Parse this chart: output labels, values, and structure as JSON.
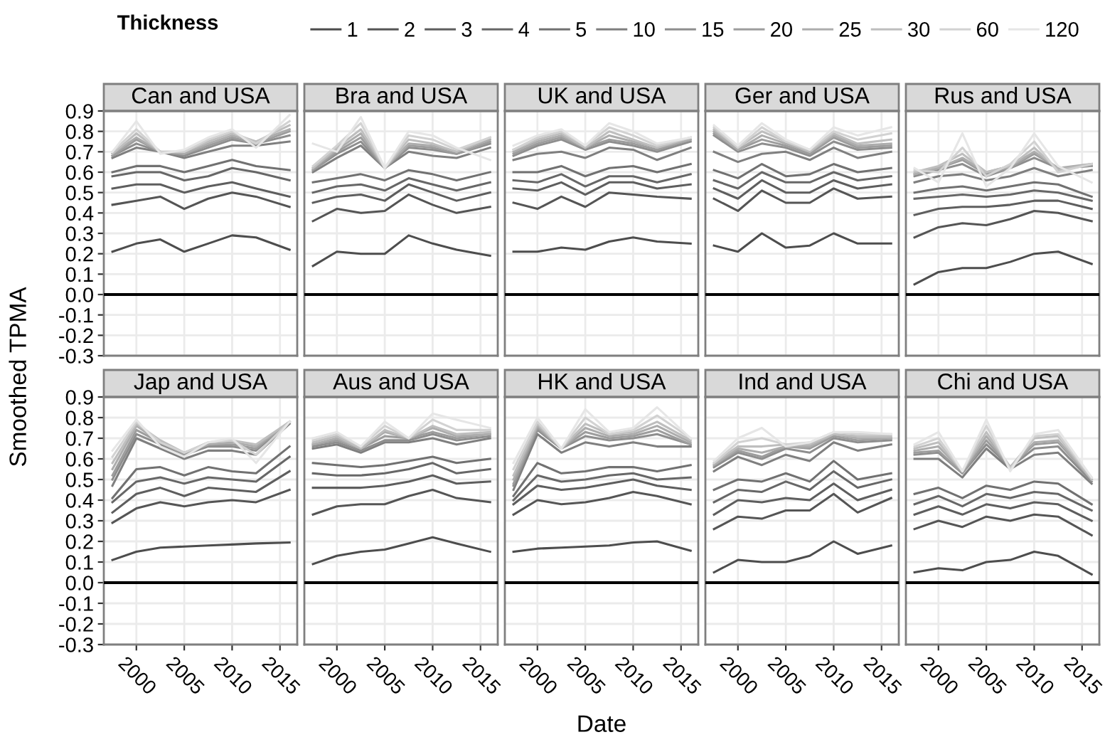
{
  "chart_data": [
    {
      "type": "line",
      "title": "Can and USA",
      "ylabel": "Smoothed TPMA",
      "legend_title": "Thickness",
      "legend": "top",
      "grid": true,
      "tick_labels": "y",
      "x": [
        1997.5,
        2000,
        2002.5,
        2005,
        2007.5,
        2010,
        2012.5,
        2016
      ],
      "xlim": [
        1996.6,
        2016.8
      ],
      "xticks": [
        2000,
        2005,
        2010,
        2015
      ],
      "ylim": [
        -0.3,
        0.9
      ],
      "yticks": [
        -0.3,
        -0.2,
        -0.1,
        {
          "value": 0,
          "label": "0.0"
        },
        0.1,
        0.2,
        0.3,
        0.4,
        0.5,
        0.6,
        0.7,
        0.8,
        0.9
      ],
      "ref_lines": [
        {
          "axis": "y",
          "value": 0,
          "color": "#000000"
        }
      ],
      "series": [
        {
          "name": "1",
          "color": "#4d4d4d",
          "values": [
            0.21,
            0.25,
            0.27,
            0.21,
            0.25,
            0.29,
            0.28,
            0.22
          ]
        },
        {
          "name": "2",
          "color": "#555555",
          "values": [
            0.44,
            0.46,
            0.48,
            0.42,
            0.47,
            0.5,
            0.48,
            0.43
          ]
        },
        {
          "name": "3",
          "color": "#5e5e5e",
          "values": [
            0.52,
            0.54,
            0.54,
            0.5,
            0.53,
            0.55,
            0.52,
            0.48
          ]
        },
        {
          "name": "4",
          "color": "#676767",
          "values": [
            0.58,
            0.6,
            0.6,
            0.56,
            0.58,
            0.62,
            0.6,
            0.56
          ]
        },
        {
          "name": "5",
          "color": "#717171",
          "values": [
            0.6,
            0.63,
            0.63,
            0.6,
            0.63,
            0.66,
            0.63,
            0.61
          ]
        },
        {
          "name": "10",
          "color": "#7f7f7f",
          "values": [
            0.67,
            0.72,
            0.7,
            0.67,
            0.7,
            0.73,
            0.73,
            0.75
          ]
        },
        {
          "name": "15",
          "color": "#8e8e8e",
          "values": [
            0.68,
            0.74,
            0.7,
            0.68,
            0.72,
            0.76,
            0.74,
            0.78
          ]
        },
        {
          "name": "20",
          "color": "#9d9d9d",
          "values": [
            0.68,
            0.76,
            0.7,
            0.69,
            0.73,
            0.77,
            0.74,
            0.8
          ]
        },
        {
          "name": "25",
          "color": "#adadad",
          "values": [
            0.69,
            0.77,
            0.7,
            0.69,
            0.74,
            0.78,
            0.75,
            0.81
          ]
        },
        {
          "name": "30",
          "color": "#bebebe",
          "values": [
            0.69,
            0.79,
            0.7,
            0.7,
            0.75,
            0.79,
            0.75,
            0.83
          ]
        },
        {
          "name": "60",
          "color": "#d2d2d2",
          "values": [
            0.7,
            0.81,
            0.7,
            0.7,
            0.76,
            0.8,
            0.74,
            0.85
          ]
        },
        {
          "name": "120",
          "color": "#e6e6e6",
          "values": [
            0.7,
            0.85,
            0.69,
            0.71,
            0.77,
            0.81,
            0.72,
            0.88
          ]
        }
      ]
    },
    {
      "type": "line",
      "title": "Bra and USA",
      "grid": true,
      "tick_labels": false,
      "x": [
        1997.5,
        2000,
        2002.5,
        2005,
        2007.5,
        2010,
        2012.5,
        2016
      ],
      "xlim": [
        1996.6,
        2016.8
      ],
      "xticks": [
        2000,
        2005,
        2010,
        2015
      ],
      "ylim": [
        -0.3,
        0.9
      ],
      "yticks": [
        -0.3,
        -0.2,
        -0.1,
        0,
        0.1,
        0.2,
        0.3,
        0.4,
        0.5,
        0.6,
        0.7,
        0.8,
        0.9
      ],
      "ref_lines": [
        {
          "axis": "y",
          "value": 0,
          "color": "#000000"
        }
      ],
      "series": [
        {
          "color": "#4d4d4d",
          "values": [
            0.14,
            0.21,
            0.2,
            0.2,
            0.29,
            0.25,
            0.22,
            0.19
          ]
        },
        {
          "color": "#555555",
          "values": [
            0.36,
            0.42,
            0.4,
            0.41,
            0.49,
            0.44,
            0.4,
            0.43
          ]
        },
        {
          "color": "#5e5e5e",
          "values": [
            0.45,
            0.48,
            0.49,
            0.46,
            0.54,
            0.5,
            0.46,
            0.5
          ]
        },
        {
          "color": "#676767",
          "values": [
            0.5,
            0.53,
            0.54,
            0.51,
            0.57,
            0.54,
            0.51,
            0.55
          ]
        },
        {
          "color": "#717171",
          "values": [
            0.55,
            0.57,
            0.59,
            0.56,
            0.61,
            0.59,
            0.56,
            0.6
          ]
        },
        {
          "color": "#7f7f7f",
          "values": [
            0.6,
            0.67,
            0.73,
            0.62,
            0.7,
            0.68,
            0.67,
            0.72
          ]
        },
        {
          "color": "#8e8e8e",
          "values": [
            0.61,
            0.69,
            0.75,
            0.62,
            0.72,
            0.71,
            0.69,
            0.74
          ]
        },
        {
          "color": "#9d9d9d",
          "values": [
            0.61,
            0.7,
            0.77,
            0.62,
            0.73,
            0.72,
            0.69,
            0.75
          ]
        },
        {
          "color": "#adadad",
          "values": [
            0.62,
            0.71,
            0.79,
            0.62,
            0.74,
            0.73,
            0.7,
            0.76
          ]
        },
        {
          "color": "#bebebe",
          "values": [
            0.62,
            0.72,
            0.81,
            0.62,
            0.76,
            0.74,
            0.7,
            0.77
          ]
        },
        {
          "color": "#d2d2d2",
          "values": [
            0.63,
            0.73,
            0.84,
            0.62,
            0.78,
            0.76,
            0.71,
            0.77
          ]
        },
        {
          "color": "#e6e6e6",
          "values": [
            0.74,
            0.7,
            0.87,
            0.62,
            0.8,
            0.78,
            0.72,
            0.66
          ]
        }
      ]
    },
    {
      "type": "line",
      "title": "UK and USA",
      "grid": true,
      "tick_labels": false,
      "x": [
        1997.5,
        2000,
        2002.5,
        2005,
        2007.5,
        2010,
        2012.5,
        2016
      ],
      "xlim": [
        1996.6,
        2016.8
      ],
      "xticks": [
        2000,
        2005,
        2010,
        2015
      ],
      "ylim": [
        -0.3,
        0.9
      ],
      "yticks": [
        -0.3,
        -0.2,
        -0.1,
        0,
        0.1,
        0.2,
        0.3,
        0.4,
        0.5,
        0.6,
        0.7,
        0.8,
        0.9
      ],
      "ref_lines": [
        {
          "axis": "y",
          "value": 0,
          "color": "#000000"
        }
      ],
      "series": [
        {
          "color": "#4d4d4d",
          "values": [
            0.21,
            0.21,
            0.23,
            0.22,
            0.26,
            0.28,
            0.26,
            0.25
          ]
        },
        {
          "color": "#555555",
          "values": [
            0.45,
            0.42,
            0.48,
            0.43,
            0.5,
            0.49,
            0.48,
            0.47
          ]
        },
        {
          "color": "#5e5e5e",
          "values": [
            0.52,
            0.51,
            0.55,
            0.49,
            0.55,
            0.55,
            0.52,
            0.54
          ]
        },
        {
          "color": "#676767",
          "values": [
            0.56,
            0.55,
            0.59,
            0.53,
            0.58,
            0.58,
            0.55,
            0.59
          ]
        },
        {
          "color": "#717171",
          "values": [
            0.6,
            0.6,
            0.63,
            0.58,
            0.62,
            0.63,
            0.6,
            0.64
          ]
        },
        {
          "color": "#7f7f7f",
          "values": [
            0.66,
            0.69,
            0.7,
            0.67,
            0.72,
            0.71,
            0.66,
            0.72
          ]
        },
        {
          "color": "#8e8e8e",
          "values": [
            0.68,
            0.73,
            0.76,
            0.71,
            0.75,
            0.73,
            0.7,
            0.75
          ]
        },
        {
          "color": "#9d9d9d",
          "values": [
            0.69,
            0.74,
            0.77,
            0.72,
            0.76,
            0.74,
            0.71,
            0.76
          ]
        },
        {
          "color": "#adadad",
          "values": [
            0.7,
            0.75,
            0.78,
            0.72,
            0.78,
            0.75,
            0.72,
            0.76
          ]
        },
        {
          "color": "#bebebe",
          "values": [
            0.71,
            0.76,
            0.79,
            0.72,
            0.8,
            0.76,
            0.72,
            0.77
          ]
        },
        {
          "color": "#d2d2d2",
          "values": [
            0.71,
            0.77,
            0.8,
            0.73,
            0.82,
            0.78,
            0.73,
            0.77
          ]
        },
        {
          "color": "#e6e6e6",
          "values": [
            0.73,
            0.78,
            0.81,
            0.73,
            0.84,
            0.8,
            0.74,
            0.77
          ]
        }
      ]
    },
    {
      "type": "line",
      "title": "Ger and USA",
      "grid": true,
      "tick_labels": false,
      "x": [
        1997.5,
        2000,
        2002.5,
        2005,
        2007.5,
        2010,
        2012.5,
        2016
      ],
      "xlim": [
        1996.6,
        2016.8
      ],
      "xticks": [
        2000,
        2005,
        2010,
        2015
      ],
      "ylim": [
        -0.3,
        0.9
      ],
      "yticks": [
        -0.3,
        -0.2,
        -0.1,
        0,
        0.1,
        0.2,
        0.3,
        0.4,
        0.5,
        0.6,
        0.7,
        0.8,
        0.9
      ],
      "ref_lines": [
        {
          "axis": "y",
          "value": 0,
          "color": "#000000"
        }
      ],
      "series": [
        {
          "color": "#4d4d4d",
          "values": [
            0.24,
            0.21,
            0.3,
            0.23,
            0.24,
            0.3,
            0.25,
            0.25
          ]
        },
        {
          "color": "#555555",
          "values": [
            0.47,
            0.41,
            0.51,
            0.45,
            0.45,
            0.52,
            0.47,
            0.48
          ]
        },
        {
          "color": "#5e5e5e",
          "values": [
            0.52,
            0.47,
            0.56,
            0.5,
            0.5,
            0.56,
            0.52,
            0.54
          ]
        },
        {
          "color": "#676767",
          "values": [
            0.56,
            0.52,
            0.6,
            0.55,
            0.55,
            0.6,
            0.56,
            0.58
          ]
        },
        {
          "color": "#717171",
          "values": [
            0.61,
            0.57,
            0.64,
            0.58,
            0.59,
            0.64,
            0.6,
            0.62
          ]
        },
        {
          "color": "#7f7f7f",
          "values": [
            0.7,
            0.65,
            0.69,
            0.7,
            0.66,
            0.72,
            0.67,
            0.7
          ]
        },
        {
          "color": "#8e8e8e",
          "values": [
            0.78,
            0.7,
            0.74,
            0.72,
            0.68,
            0.75,
            0.71,
            0.72
          ]
        },
        {
          "color": "#9d9d9d",
          "values": [
            0.79,
            0.71,
            0.76,
            0.73,
            0.69,
            0.77,
            0.72,
            0.73
          ]
        },
        {
          "color": "#adadad",
          "values": [
            0.8,
            0.71,
            0.78,
            0.74,
            0.7,
            0.78,
            0.73,
            0.74
          ]
        },
        {
          "color": "#bebebe",
          "values": [
            0.81,
            0.72,
            0.8,
            0.75,
            0.7,
            0.79,
            0.74,
            0.76
          ]
        },
        {
          "color": "#d2d2d2",
          "values": [
            0.82,
            0.72,
            0.82,
            0.75,
            0.71,
            0.8,
            0.76,
            0.79
          ]
        },
        {
          "color": "#e6e6e6",
          "values": [
            0.83,
            0.73,
            0.84,
            0.76,
            0.71,
            0.82,
            0.78,
            0.82
          ]
        }
      ]
    },
    {
      "type": "line",
      "title": "Rus and USA",
      "grid": true,
      "tick_labels": false,
      "x": [
        1997.5,
        2000,
        2002.5,
        2005,
        2007.5,
        2010,
        2012.5,
        2016
      ],
      "xlim": [
        1996.6,
        2016.8
      ],
      "xticks": [
        2000,
        2005,
        2010,
        2015
      ],
      "ylim": [
        -0.3,
        0.9
      ],
      "yticks": [
        -0.3,
        -0.2,
        -0.1,
        0,
        0.1,
        0.2,
        0.3,
        0.4,
        0.5,
        0.6,
        0.7,
        0.8,
        0.9
      ],
      "ref_lines": [
        {
          "axis": "y",
          "value": 0,
          "color": "#000000"
        }
      ],
      "series": [
        {
          "color": "#4d4d4d",
          "values": [
            0.05,
            0.11,
            0.13,
            0.13,
            0.16,
            0.2,
            0.21,
            0.15
          ]
        },
        {
          "color": "#555555",
          "values": [
            0.28,
            0.33,
            0.35,
            0.34,
            0.37,
            0.41,
            0.4,
            0.36
          ]
        },
        {
          "color": "#5e5e5e",
          "values": [
            0.39,
            0.42,
            0.43,
            0.43,
            0.44,
            0.46,
            0.46,
            0.42
          ]
        },
        {
          "color": "#676767",
          "values": [
            0.47,
            0.48,
            0.49,
            0.48,
            0.49,
            0.51,
            0.5,
            0.46
          ]
        },
        {
          "color": "#717171",
          "values": [
            0.5,
            0.52,
            0.53,
            0.51,
            0.53,
            0.55,
            0.54,
            0.48
          ]
        },
        {
          "color": "#7f7f7f",
          "values": [
            0.55,
            0.58,
            0.59,
            0.56,
            0.58,
            0.62,
            0.58,
            0.61
          ]
        },
        {
          "color": "#8e8e8e",
          "values": [
            0.58,
            0.61,
            0.64,
            0.58,
            0.62,
            0.67,
            0.62,
            0.63
          ]
        },
        {
          "color": "#9d9d9d",
          "values": [
            0.59,
            0.62,
            0.66,
            0.59,
            0.62,
            0.69,
            0.62,
            0.63
          ]
        },
        {
          "color": "#adadad",
          "values": [
            0.59,
            0.62,
            0.67,
            0.6,
            0.63,
            0.7,
            0.62,
            0.64
          ]
        },
        {
          "color": "#bebebe",
          "values": [
            0.6,
            0.63,
            0.69,
            0.6,
            0.63,
            0.72,
            0.61,
            0.64
          ]
        },
        {
          "color": "#d2d2d2",
          "values": [
            0.61,
            0.6,
            0.72,
            0.58,
            0.64,
            0.75,
            0.6,
            0.64
          ]
        },
        {
          "color": "#e6e6e6",
          "values": [
            0.62,
            0.55,
            0.79,
            0.53,
            0.62,
            0.79,
            0.63,
            0.55
          ]
        }
      ]
    },
    {
      "type": "line",
      "title": "Jap and USA",
      "grid": true,
      "x": [
        1997.5,
        2000,
        2002.5,
        2005,
        2007.5,
        2010,
        2012.5,
        2016
      ],
      "xlim": [
        1996.6,
        2016.8
      ],
      "xticks": [
        2000,
        2005,
        2010,
        2015
      ],
      "ylim": [
        -0.3,
        0.9
      ],
      "yticks": [
        -0.3,
        -0.2,
        -0.1,
        {
          "value": 0,
          "label": "0.0"
        },
        0.1,
        0.2,
        0.3,
        0.4,
        0.5,
        0.6,
        0.7,
        0.8,
        0.9
      ],
      "ref_lines": [
        {
          "axis": "y",
          "value": 0,
          "color": "#000000"
        }
      ],
      "series": [
        {
          "color": "#4d4d4d",
          "values": [
            0.11,
            0.15,
            0.17,
            0.175,
            0.18,
            0.185,
            0.19,
            0.195
          ]
        },
        {
          "color": "#555555",
          "values": [
            0.29,
            0.36,
            0.39,
            0.37,
            0.39,
            0.4,
            0.39,
            0.45
          ]
        },
        {
          "color": "#5e5e5e",
          "values": [
            0.34,
            0.43,
            0.46,
            0.42,
            0.46,
            0.45,
            0.44,
            0.54
          ]
        },
        {
          "color": "#676767",
          "values": [
            0.39,
            0.49,
            0.51,
            0.48,
            0.51,
            0.5,
            0.49,
            0.61
          ]
        },
        {
          "color": "#717171",
          "values": [
            0.41,
            0.55,
            0.56,
            0.52,
            0.56,
            0.54,
            0.53,
            0.66
          ]
        },
        {
          "color": "#7f7f7f",
          "values": [
            0.47,
            0.7,
            0.65,
            0.6,
            0.64,
            0.64,
            0.62,
            0.77
          ]
        },
        {
          "color": "#8e8e8e",
          "values": [
            0.5,
            0.72,
            0.67,
            0.62,
            0.66,
            0.66,
            0.64,
            0.78
          ]
        },
        {
          "color": "#9d9d9d",
          "values": [
            0.52,
            0.74,
            0.68,
            0.62,
            0.67,
            0.67,
            0.65,
            0.78
          ]
        },
        {
          "color": "#adadad",
          "values": [
            0.55,
            0.76,
            0.68,
            0.63,
            0.67,
            0.68,
            0.66,
            0.78
          ]
        },
        {
          "color": "#bebebe",
          "values": [
            0.58,
            0.77,
            0.69,
            0.63,
            0.68,
            0.69,
            0.67,
            0.78
          ]
        },
        {
          "color": "#d2d2d2",
          "values": [
            0.61,
            0.78,
            0.68,
            0.63,
            0.68,
            0.69,
            0.62,
            0.78
          ]
        },
        {
          "color": "#e6e6e6",
          "values": [
            0.64,
            0.79,
            0.66,
            0.61,
            0.68,
            0.7,
            0.58,
            0.78
          ]
        }
      ]
    },
    {
      "type": "line",
      "title": "Aus and USA",
      "grid": true,
      "tick_labels": "x",
      "x": [
        1997.5,
        2000,
        2002.5,
        2005,
        2007.5,
        2010,
        2012.5,
        2016
      ],
      "xlim": [
        1996.6,
        2016.8
      ],
      "xticks": [
        2000,
        2005,
        2010,
        2015
      ],
      "ylim": [
        -0.3,
        0.9
      ],
      "yticks": [
        -0.3,
        -0.2,
        -0.1,
        0,
        0.1,
        0.2,
        0.3,
        0.4,
        0.5,
        0.6,
        0.7,
        0.8,
        0.9
      ],
      "ref_lines": [
        {
          "axis": "y",
          "value": 0,
          "color": "#000000"
        }
      ],
      "series": [
        {
          "color": "#4d4d4d",
          "values": [
            0.09,
            0.13,
            0.15,
            0.16,
            0.19,
            0.22,
            0.19,
            0.15
          ]
        },
        {
          "color": "#555555",
          "values": [
            0.33,
            0.37,
            0.38,
            0.38,
            0.42,
            0.45,
            0.41,
            0.39
          ]
        },
        {
          "color": "#5e5e5e",
          "values": [
            0.46,
            0.46,
            0.46,
            0.47,
            0.49,
            0.52,
            0.48,
            0.49
          ]
        },
        {
          "color": "#676767",
          "values": [
            0.53,
            0.52,
            0.52,
            0.53,
            0.55,
            0.58,
            0.53,
            0.55
          ]
        },
        {
          "color": "#717171",
          "values": [
            0.58,
            0.57,
            0.56,
            0.57,
            0.59,
            0.61,
            0.58,
            0.6
          ]
        },
        {
          "color": "#7f7f7f",
          "values": [
            0.65,
            0.67,
            0.63,
            0.68,
            0.68,
            0.7,
            0.67,
            0.7
          ]
        },
        {
          "color": "#8e8e8e",
          "values": [
            0.66,
            0.68,
            0.64,
            0.69,
            0.69,
            0.72,
            0.69,
            0.71
          ]
        },
        {
          "color": "#9d9d9d",
          "values": [
            0.67,
            0.69,
            0.65,
            0.71,
            0.7,
            0.73,
            0.7,
            0.72
          ]
        },
        {
          "color": "#adadad",
          "values": [
            0.67,
            0.7,
            0.65,
            0.73,
            0.7,
            0.75,
            0.71,
            0.72
          ]
        },
        {
          "color": "#bebebe",
          "values": [
            0.68,
            0.71,
            0.65,
            0.74,
            0.7,
            0.76,
            0.72,
            0.73
          ]
        },
        {
          "color": "#d2d2d2",
          "values": [
            0.69,
            0.72,
            0.66,
            0.76,
            0.7,
            0.79,
            0.74,
            0.74
          ]
        },
        {
          "color": "#e6e6e6",
          "values": [
            0.7,
            0.73,
            0.66,
            0.78,
            0.7,
            0.82,
            0.79,
            0.75
          ]
        }
      ]
    },
    {
      "type": "line",
      "title": "HK and USA",
      "xlabel": "Date",
      "grid": true,
      "tick_labels": "x",
      "x": [
        1997.5,
        2000,
        2002.5,
        2005,
        2007.5,
        2010,
        2012.5,
        2016
      ],
      "xlim": [
        1996.6,
        2016.8
      ],
      "xticks": [
        2000,
        2005,
        2010,
        2015
      ],
      "ylim": [
        -0.3,
        0.9
      ],
      "yticks": [
        -0.3,
        -0.2,
        -0.1,
        0,
        0.1,
        0.2,
        0.3,
        0.4,
        0.5,
        0.6,
        0.7,
        0.8,
        0.9
      ],
      "ref_lines": [
        {
          "axis": "y",
          "value": 0,
          "color": "#000000"
        }
      ],
      "series": [
        {
          "color": "#4d4d4d",
          "values": [
            0.15,
            0.165,
            0.17,
            0.175,
            0.18,
            0.195,
            0.2,
            0.155
          ]
        },
        {
          "color": "#555555",
          "values": [
            0.33,
            0.4,
            0.38,
            0.39,
            0.41,
            0.44,
            0.42,
            0.38
          ]
        },
        {
          "color": "#5e5e5e",
          "values": [
            0.38,
            0.47,
            0.45,
            0.46,
            0.48,
            0.5,
            0.47,
            0.45
          ]
        },
        {
          "color": "#676767",
          "values": [
            0.4,
            0.52,
            0.49,
            0.5,
            0.52,
            0.53,
            0.5,
            0.51
          ]
        },
        {
          "color": "#717171",
          "values": [
            0.42,
            0.58,
            0.53,
            0.54,
            0.56,
            0.56,
            0.54,
            0.57
          ]
        },
        {
          "color": "#7f7f7f",
          "values": [
            0.45,
            0.72,
            0.63,
            0.68,
            0.66,
            0.68,
            0.66,
            0.66
          ]
        },
        {
          "color": "#8e8e8e",
          "values": [
            0.47,
            0.74,
            0.65,
            0.71,
            0.69,
            0.7,
            0.72,
            0.67
          ]
        },
        {
          "color": "#9d9d9d",
          "values": [
            0.48,
            0.75,
            0.65,
            0.73,
            0.7,
            0.71,
            0.74,
            0.67
          ]
        },
        {
          "color": "#adadad",
          "values": [
            0.5,
            0.76,
            0.65,
            0.75,
            0.71,
            0.72,
            0.76,
            0.68
          ]
        },
        {
          "color": "#bebebe",
          "values": [
            0.52,
            0.77,
            0.65,
            0.77,
            0.72,
            0.73,
            0.78,
            0.69
          ]
        },
        {
          "color": "#d2d2d2",
          "values": [
            0.55,
            0.78,
            0.65,
            0.8,
            0.72,
            0.74,
            0.81,
            0.7
          ]
        },
        {
          "color": "#e6e6e6",
          "values": [
            0.58,
            0.8,
            0.65,
            0.84,
            0.73,
            0.75,
            0.85,
            0.7
          ]
        }
      ]
    },
    {
      "type": "line",
      "title": "Ind and USA",
      "grid": true,
      "tick_labels": "x",
      "x": [
        1997.5,
        2000,
        2002.5,
        2005,
        2007.5,
        2010,
        2012.5,
        2016
      ],
      "xlim": [
        1996.6,
        2016.8
      ],
      "xticks": [
        2000,
        2005,
        2010,
        2015
      ],
      "ylim": [
        -0.3,
        0.9
      ],
      "yticks": [
        -0.3,
        -0.2,
        -0.1,
        0,
        0.1,
        0.2,
        0.3,
        0.4,
        0.5,
        0.6,
        0.7,
        0.8,
        0.9
      ],
      "ref_lines": [
        {
          "axis": "y",
          "value": 0,
          "color": "#000000"
        }
      ],
      "series": [
        {
          "color": "#4d4d4d",
          "values": [
            0.05,
            0.11,
            0.1,
            0.1,
            0.13,
            0.2,
            0.14,
            0.18
          ]
        },
        {
          "color": "#555555",
          "values": [
            0.26,
            0.32,
            0.31,
            0.35,
            0.35,
            0.43,
            0.34,
            0.41
          ]
        },
        {
          "color": "#5e5e5e",
          "values": [
            0.33,
            0.4,
            0.39,
            0.41,
            0.4,
            0.48,
            0.4,
            0.45
          ]
        },
        {
          "color": "#676767",
          "values": [
            0.39,
            0.45,
            0.44,
            0.49,
            0.45,
            0.54,
            0.46,
            0.5
          ]
        },
        {
          "color": "#717171",
          "values": [
            0.45,
            0.5,
            0.49,
            0.53,
            0.49,
            0.59,
            0.5,
            0.53
          ]
        },
        {
          "color": "#7f7f7f",
          "values": [
            0.54,
            0.61,
            0.57,
            0.62,
            0.59,
            0.68,
            0.64,
            0.67
          ]
        },
        {
          "color": "#8e8e8e",
          "values": [
            0.56,
            0.63,
            0.6,
            0.65,
            0.63,
            0.7,
            0.68,
            0.69
          ]
        },
        {
          "color": "#9d9d9d",
          "values": [
            0.57,
            0.64,
            0.61,
            0.66,
            0.65,
            0.71,
            0.69,
            0.7
          ]
        },
        {
          "color": "#adadad",
          "values": [
            0.57,
            0.65,
            0.63,
            0.66,
            0.66,
            0.72,
            0.7,
            0.7
          ]
        },
        {
          "color": "#bebebe",
          "values": [
            0.58,
            0.66,
            0.66,
            0.67,
            0.67,
            0.72,
            0.71,
            0.71
          ]
        },
        {
          "color": "#d2d2d2",
          "values": [
            0.58,
            0.68,
            0.7,
            0.67,
            0.68,
            0.73,
            0.72,
            0.72
          ]
        },
        {
          "color": "#e6e6e6",
          "values": [
            0.59,
            0.7,
            0.75,
            0.66,
            0.68,
            0.73,
            0.73,
            0.72
          ]
        }
      ]
    },
    {
      "type": "line",
      "title": "Chi and USA",
      "grid": true,
      "tick_labels": "x",
      "x": [
        1997.5,
        2000,
        2002.5,
        2005,
        2007.5,
        2010,
        2012.5,
        2016
      ],
      "xlim": [
        1996.6,
        2016.8
      ],
      "xticks": [
        2000,
        2005,
        2010,
        2015
      ],
      "ylim": [
        -0.3,
        0.9
      ],
      "yticks": [
        -0.3,
        -0.2,
        -0.1,
        0,
        0.1,
        0.2,
        0.3,
        0.4,
        0.5,
        0.6,
        0.7,
        0.8,
        0.9
      ],
      "ref_lines": [
        {
          "axis": "y",
          "value": 0,
          "color": "#000000"
        }
      ],
      "series": [
        {
          "color": "#4d4d4d",
          "values": [
            0.05,
            0.07,
            0.06,
            0.1,
            0.11,
            0.15,
            0.13,
            0.04
          ]
        },
        {
          "color": "#555555",
          "values": [
            0.26,
            0.3,
            0.27,
            0.32,
            0.3,
            0.33,
            0.32,
            0.23
          ]
        },
        {
          "color": "#5e5e5e",
          "values": [
            0.33,
            0.37,
            0.33,
            0.38,
            0.36,
            0.39,
            0.38,
            0.3
          ]
        },
        {
          "color": "#676767",
          "values": [
            0.38,
            0.42,
            0.37,
            0.43,
            0.41,
            0.44,
            0.43,
            0.35
          ]
        },
        {
          "color": "#717171",
          "values": [
            0.43,
            0.46,
            0.41,
            0.47,
            0.45,
            0.49,
            0.48,
            0.38
          ]
        },
        {
          "color": "#7f7f7f",
          "values": [
            0.6,
            0.6,
            0.51,
            0.65,
            0.55,
            0.62,
            0.63,
            0.48
          ]
        },
        {
          "color": "#8e8e8e",
          "values": [
            0.62,
            0.63,
            0.53,
            0.67,
            0.56,
            0.65,
            0.66,
            0.49
          ]
        },
        {
          "color": "#9d9d9d",
          "values": [
            0.63,
            0.64,
            0.53,
            0.69,
            0.56,
            0.67,
            0.68,
            0.5
          ]
        },
        {
          "color": "#adadad",
          "values": [
            0.64,
            0.66,
            0.54,
            0.71,
            0.56,
            0.68,
            0.69,
            0.5
          ]
        },
        {
          "color": "#bebebe",
          "values": [
            0.65,
            0.68,
            0.54,
            0.73,
            0.56,
            0.7,
            0.71,
            0.5
          ]
        },
        {
          "color": "#d2d2d2",
          "values": [
            0.66,
            0.7,
            0.54,
            0.76,
            0.55,
            0.71,
            0.72,
            0.51
          ]
        },
        {
          "color": "#e6e6e6",
          "values": [
            0.67,
            0.73,
            0.54,
            0.79,
            0.54,
            0.72,
            0.74,
            0.51
          ]
        }
      ]
    }
  ]
}
